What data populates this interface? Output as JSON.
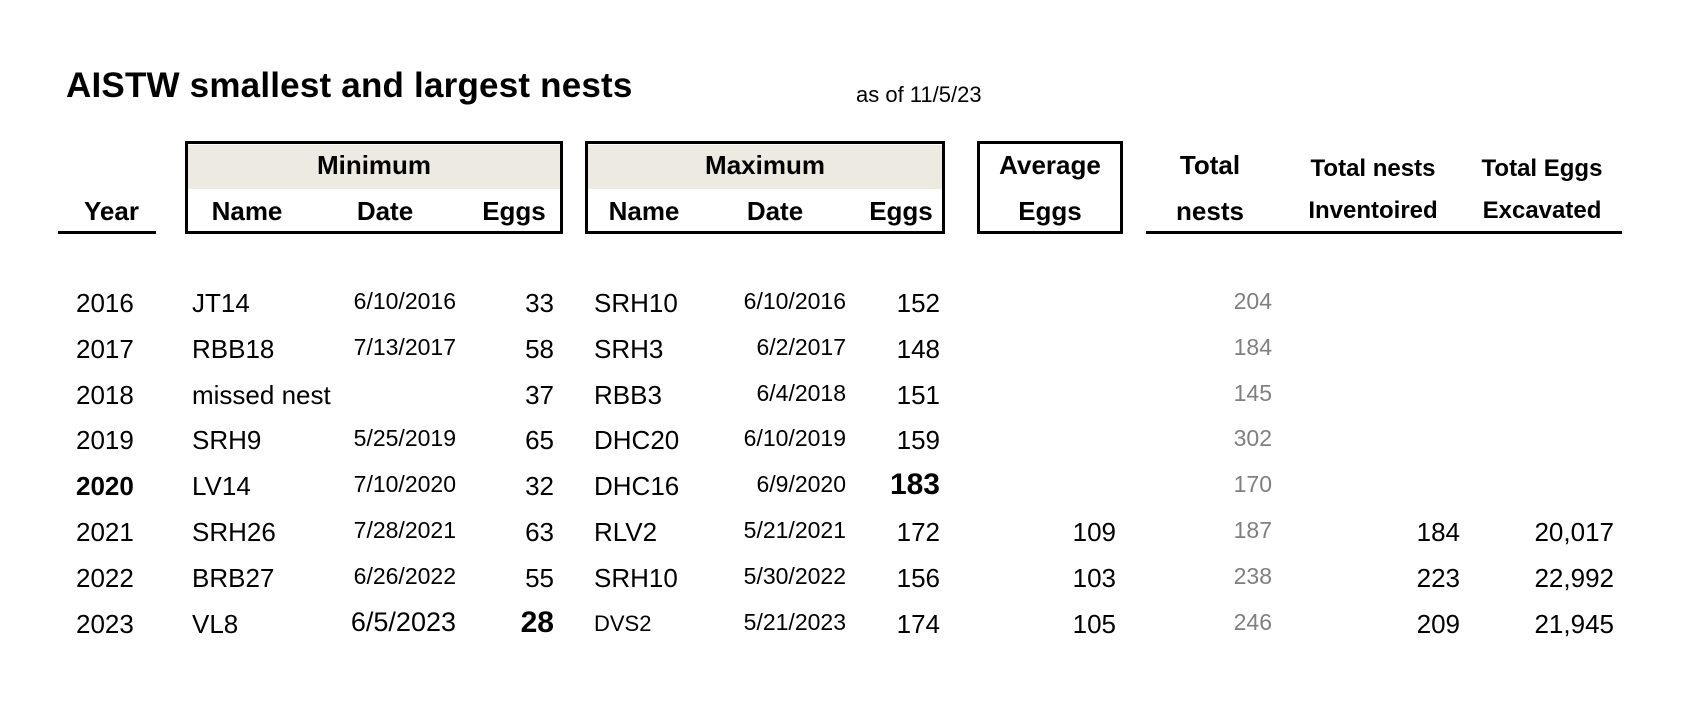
{
  "title": "AISTW smallest and largest nests",
  "as_of": "as of 11/5/23",
  "headers": {
    "year": "Year",
    "minimum": "Minimum",
    "maximum": "Maximum",
    "name": "Name",
    "date": "Date",
    "eggs": "Eggs",
    "average_line1": "Average",
    "average_line2": "Eggs",
    "total_nests_line1": "Total",
    "total_nests_line2": "nests",
    "inventoried_line1": "Total nests",
    "inventoried_line2": "Inventoired",
    "excavated_line1": "Total Eggs",
    "excavated_line2": "Excavated"
  },
  "rows": [
    {
      "year": "2016",
      "min_name": "JT14",
      "min_date": "6/10/2016",
      "min_eggs": "33",
      "max_name": "SRH10",
      "max_date": "6/10/2016",
      "max_eggs": "152",
      "avg": "",
      "total_nests": "204",
      "inventoried": "",
      "excavated": ""
    },
    {
      "year": "2017",
      "min_name": "RBB18",
      "min_date": "7/13/2017",
      "min_eggs": "58",
      "max_name": "SRH3",
      "max_date": "6/2/2017",
      "max_eggs": "148",
      "avg": "",
      "total_nests": "184",
      "inventoried": "",
      "excavated": ""
    },
    {
      "year": "2018",
      "min_name": "missed nest",
      "min_date": "",
      "min_eggs": "37",
      "max_name": "RBB3",
      "max_date": "6/4/2018",
      "max_eggs": "151",
      "avg": "",
      "total_nests": "145",
      "inventoried": "",
      "excavated": ""
    },
    {
      "year": "2019",
      "min_name": "SRH9",
      "min_date": "5/25/2019",
      "min_eggs": "65",
      "max_name": "DHC20",
      "max_date": "6/10/2019",
      "max_eggs": "159",
      "avg": "",
      "total_nests": "302",
      "inventoried": "",
      "excavated": ""
    },
    {
      "year": "2020",
      "min_name": "LV14",
      "min_date": "7/10/2020",
      "min_eggs": "32",
      "max_name": "DHC16",
      "max_date": "6/9/2020",
      "max_eggs": "183",
      "avg": "",
      "total_nests": "170",
      "inventoried": "",
      "excavated": ""
    },
    {
      "year": "2021",
      "min_name": "SRH26",
      "min_date": "7/28/2021",
      "min_eggs": "63",
      "max_name": "RLV2",
      "max_date": "5/21/2021",
      "max_eggs": "172",
      "avg": "109",
      "total_nests": "187",
      "inventoried": "184",
      "excavated": "20,017"
    },
    {
      "year": "2022",
      "min_name": "BRB27",
      "min_date": "6/26/2022",
      "min_eggs": "55",
      "max_name": "SRH10",
      "max_date": "5/30/2022",
      "max_eggs": "156",
      "avg": "103",
      "total_nests": "238",
      "inventoried": "223",
      "excavated": "22,992"
    },
    {
      "year": "2023",
      "min_name": "VL8",
      "min_date": "6/5/2023",
      "min_eggs": "28",
      "max_name": "DVS2",
      "max_date": "5/21/2023",
      "max_eggs": "174",
      "avg": "105",
      "total_nests": "246",
      "inventoried": "209",
      "excavated": "21,945"
    }
  ],
  "colors": {
    "header_shade": "#edebe1",
    "total_nests_text": "#7f7f7f"
  }
}
